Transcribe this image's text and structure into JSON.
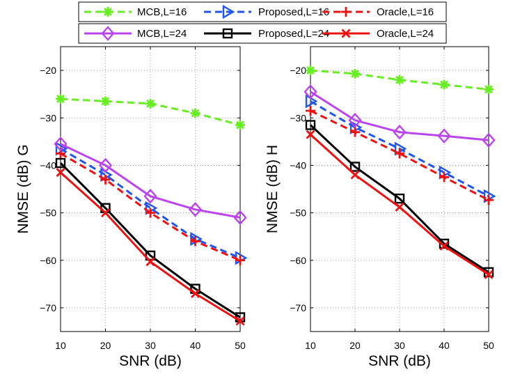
{
  "chart_data": [
    {
      "type": "line",
      "title": "",
      "xlabel": "SNR (dB)",
      "ylabel": "NMSE (dB) G",
      "x": [
        10,
        20,
        30,
        40,
        50
      ],
      "xlim": [
        10,
        50
      ],
      "ylim": [
        -75,
        -15
      ],
      "xticks": [
        "10",
        "20",
        "30",
        "40",
        "50"
      ],
      "yticks": [
        "−70",
        "−60",
        "−50",
        "−40",
        "−30",
        "−20"
      ],
      "ytick_values": [
        -70,
        -60,
        -50,
        -40,
        -30,
        -20
      ],
      "grid": true,
      "series": [
        {
          "name": "MCB,L=16",
          "values": [
            -26,
            -26.5,
            -27,
            -29,
            -31.5
          ]
        },
        {
          "name": "Proposed,L=16",
          "values": [
            -36.5,
            -42,
            -49,
            -55.5,
            -59.5
          ]
        },
        {
          "name": "Oracle,L=16",
          "values": [
            -37.5,
            -43,
            -50,
            -56,
            -60
          ]
        },
        {
          "name": "MCB,L=24",
          "values": [
            -35.5,
            -40,
            -46.5,
            -49.3,
            -51
          ]
        },
        {
          "name": "Proposed,L=24",
          "values": [
            -39.5,
            -49,
            -59,
            -66,
            -72
          ]
        },
        {
          "name": "Oracle,L=24",
          "values": [
            -41.5,
            -50,
            -60.3,
            -67,
            -72.8
          ]
        }
      ]
    },
    {
      "type": "line",
      "title": "",
      "xlabel": "SNR (dB)",
      "ylabel": "NMSE (dB) H",
      "x": [
        10,
        20,
        30,
        40,
        50
      ],
      "xlim": [
        10,
        50
      ],
      "ylim": [
        -75,
        -15
      ],
      "xticks": [
        "10",
        "20",
        "30",
        "40",
        "50"
      ],
      "yticks": [
        "−70",
        "−60",
        "−50",
        "−40",
        "−30",
        "−20"
      ],
      "ytick_values": [
        -70,
        -60,
        -50,
        -40,
        -30,
        -20
      ],
      "grid": true,
      "series": [
        {
          "name": "MCB,L=16",
          "values": [
            -20,
            -20.7,
            -22,
            -23,
            -24
          ]
        },
        {
          "name": "Proposed,L=16",
          "values": [
            -26.5,
            -32,
            -36.5,
            -41.5,
            -46.5
          ]
        },
        {
          "name": "Oracle,L=16",
          "values": [
            -28.5,
            -33,
            -37.5,
            -42.5,
            -47.3
          ]
        },
        {
          "name": "MCB,L=24",
          "values": [
            -24.5,
            -30.5,
            -33,
            -33.8,
            -34.7
          ]
        },
        {
          "name": "Proposed,L=24",
          "values": [
            -31.5,
            -40.3,
            -47,
            -56.5,
            -62.5
          ]
        },
        {
          "name": "Oracle,L=24",
          "values": [
            -33.5,
            -42,
            -48.8,
            -57,
            -63
          ]
        }
      ]
    }
  ],
  "legend": {
    "placement": "top-center",
    "rows": [
      [
        "MCB,L=16",
        "Proposed,L=16",
        "Oracle,L=16"
      ],
      [
        "MCB,L=24",
        "Proposed,L=24",
        "Oracle,L=24"
      ]
    ]
  },
  "styles": {
    "MCB,L=16": {
      "color": "#66ee22",
      "dash": "dash",
      "marker": "asterisk"
    },
    "Proposed,L=16": {
      "color": "#2255ee",
      "dash": "dash",
      "marker": "triangle-right"
    },
    "Oracle,L=16": {
      "color": "#ee1111",
      "dash": "dash",
      "marker": "plus"
    },
    "MCB,L=24": {
      "color": "#bb44ee",
      "dash": "solid",
      "marker": "diamond"
    },
    "Proposed,L=24": {
      "color": "#000000",
      "dash": "solid",
      "marker": "square"
    },
    "Oracle,L=24": {
      "color": "#ee1111",
      "dash": "solid",
      "marker": "x"
    }
  }
}
